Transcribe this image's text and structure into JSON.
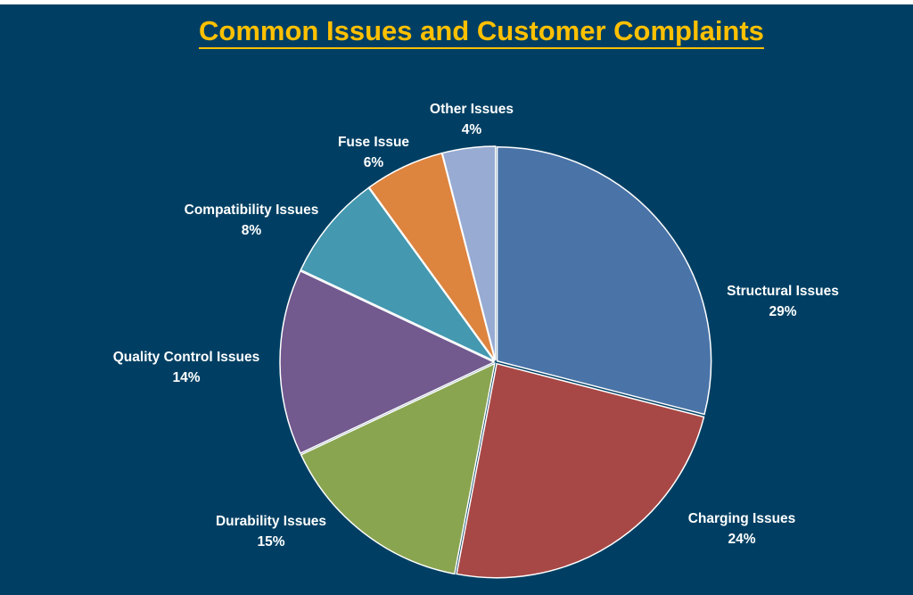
{
  "chart_data": {
    "type": "pie",
    "title": "Common Issues and Customer Complaints",
    "start": "top, clockwise",
    "slices": [
      {
        "label": "Structural Issues",
        "value": 29,
        "display": "29%",
        "color": "#4A74A8"
      },
      {
        "label": "Charging Issues",
        "value": 24,
        "display": "24%",
        "color": "#A84846"
      },
      {
        "label": "Durability Issues",
        "value": 15,
        "display": "15%",
        "color": "#8AA550"
      },
      {
        "label": "Quality Control Issues",
        "value": 14,
        "display": "14%",
        "color": "#72598E"
      },
      {
        "label": "Compatibility Issues",
        "value": 8,
        "display": "8%",
        "color": "#4498B0"
      },
      {
        "label": "Fuse Issue",
        "value": 6,
        "display": "6%",
        "color": "#DD843E"
      },
      {
        "label": "Other Issues",
        "value": 4,
        "display": "4%",
        "color": "#97ABD3"
      }
    ],
    "legend": "none (data labels outside)"
  },
  "colors": {
    "background": "#003F63",
    "title": "#FFC000"
  }
}
